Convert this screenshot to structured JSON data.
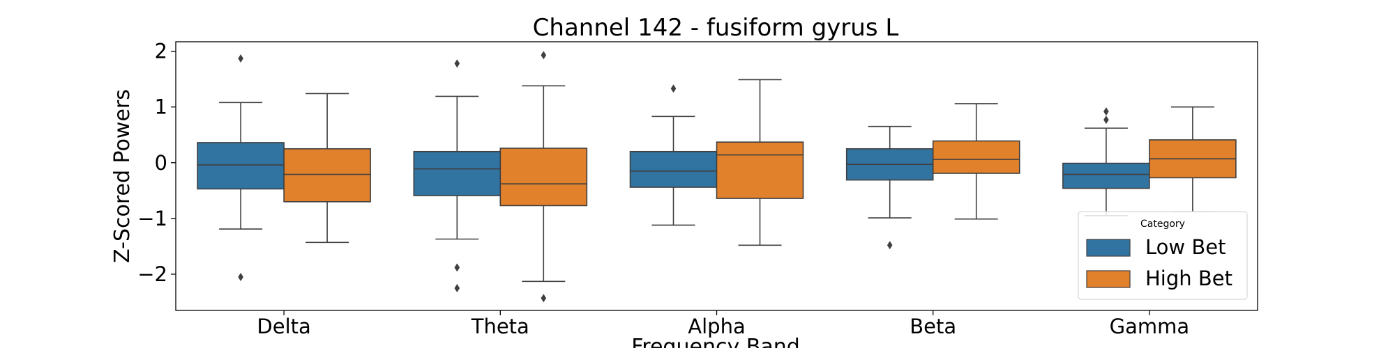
{
  "chart_data": {
    "type": "boxplot",
    "title": "Channel 142 - fusiform gyrus L",
    "xlabel": "Frequency Band",
    "ylabel": "Z-Scored Powers",
    "ylim": [
      -2.65,
      2.17
    ],
    "yticks": [
      2,
      1,
      0,
      -1,
      -2
    ],
    "ytick_labels": [
      "2",
      "1",
      "0",
      "−1",
      "−2"
    ],
    "categories": [
      "Delta",
      "Theta",
      "Alpha",
      "Beta",
      "Gamma"
    ],
    "legend": {
      "title": "Category",
      "placement": "lower-right"
    },
    "grid": false,
    "series": [
      {
        "name": "Low Bet",
        "color": "#3274a1",
        "boxes": [
          {
            "whislo": -1.19,
            "q1": -0.47,
            "med": -0.04,
            "q3": 0.36,
            "whishi": 1.08,
            "fliers": [
              1.87,
              -2.05
            ]
          },
          {
            "whislo": -1.37,
            "q1": -0.59,
            "med": -0.11,
            "q3": 0.2,
            "whishi": 1.19,
            "fliers": [
              1.78,
              -1.88,
              -2.25
            ]
          },
          {
            "whislo": -1.12,
            "q1": -0.44,
            "med": -0.15,
            "q3": 0.2,
            "whishi": 0.83,
            "fliers": [
              1.33
            ]
          },
          {
            "whislo": -0.99,
            "q1": -0.31,
            "med": -0.03,
            "q3": 0.25,
            "whishi": 0.65,
            "fliers": [
              -1.48
            ]
          },
          {
            "whislo": -0.95,
            "q1": -0.46,
            "med": -0.21,
            "q3": -0.01,
            "whishi": 0.62,
            "fliers": [
              0.92,
              0.77
            ]
          }
        ]
      },
      {
        "name": "High Bet",
        "color": "#e1812c",
        "boxes": [
          {
            "whislo": -1.43,
            "q1": -0.7,
            "med": -0.21,
            "q3": 0.25,
            "whishi": 1.24,
            "fliers": []
          },
          {
            "whislo": -2.13,
            "q1": -0.77,
            "med": -0.38,
            "q3": 0.26,
            "whishi": 1.38,
            "fliers": [
              1.93,
              -2.43
            ]
          },
          {
            "whislo": -1.48,
            "q1": -0.64,
            "med": 0.14,
            "q3": 0.37,
            "whishi": 1.49,
            "fliers": []
          },
          {
            "whislo": -1.01,
            "q1": -0.19,
            "med": 0.06,
            "q3": 0.39,
            "whishi": 1.06,
            "fliers": []
          },
          {
            "whislo": -0.88,
            "q1": -0.27,
            "med": 0.07,
            "q3": 0.41,
            "whishi": 1.0,
            "fliers": []
          }
        ]
      }
    ]
  }
}
